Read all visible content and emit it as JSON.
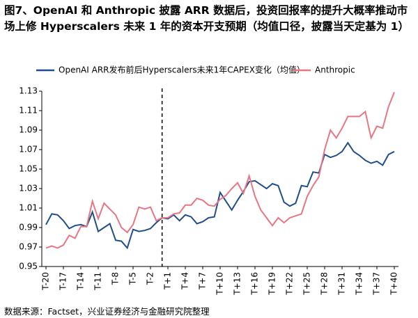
{
  "chart_data": {
    "type": "line",
    "title": "图7、OpenAI 和 Anthropic 披露 ARR 数据后，投资回报率的提升大概率推动市场上修 Hyperscalers 未来 1 年的资本开支预期（均值口径，披露当天定基为 1）",
    "source": "数据来源：Factset，兴业证券经济与金融研究院整理",
    "categories": [
      "T-20",
      null,
      null,
      "T-17",
      null,
      null,
      "T-14",
      null,
      null,
      "T-11",
      null,
      null,
      "T-8",
      null,
      null,
      "T-5",
      null,
      null,
      "T-2",
      null,
      null,
      "T+1",
      null,
      null,
      "T+4",
      null,
      null,
      "T+7",
      null,
      null,
      "T+10",
      null,
      null,
      "T+13",
      null,
      null,
      "T+16",
      null,
      null,
      "T+19",
      null,
      null,
      "T+22",
      null,
      null,
      "T+25",
      null,
      null,
      "T+28",
      null,
      null,
      "T+31",
      null,
      null,
      "T+34",
      null,
      null,
      "T+37",
      null,
      null,
      "T+40"
    ],
    "series": [
      {
        "name": "OpenAI ARR发布前后Hyperscalers未来1年CAPEX变化（均值）",
        "color": "#1f4e8c",
        "values": [
          0.993,
          1.004,
          1.003,
          0.997,
          0.989,
          0.992,
          0.993,
          0.991,
          1.006,
          0.986,
          0.99,
          0.994,
          0.977,
          0.976,
          0.969,
          0.988,
          0.986,
          0.987,
          0.989,
          0.995,
          1.0,
          0.999,
          1.003,
          0.997,
          1.003,
          1.001,
          0.994,
          0.996,
          1.0,
          1.001,
          1.026,
          1.017,
          1.008,
          1.018,
          1.027,
          1.037,
          1.038,
          1.034,
          1.03,
          1.035,
          1.033,
          1.016,
          1.012,
          1.015,
          1.033,
          1.032,
          1.047,
          1.046,
          1.065,
          1.062,
          1.064,
          1.068,
          1.077,
          1.068,
          1.064,
          1.059,
          1.056,
          1.058,
          1.054,
          1.065,
          1.068
        ]
      },
      {
        "name": "Anthropic",
        "color": "#e87582",
        "values": [
          0.969,
          0.971,
          0.969,
          0.972,
          0.982,
          0.979,
          0.991,
          0.991,
          1.017,
          0.999,
          1.015,
          1.009,
          1.003,
          0.99,
          0.985,
          0.993,
          1.011,
          1.009,
          1.011,
          0.997,
          1.0,
          1.0,
          1.004,
          1.005,
          1.013,
          1.013,
          1.02,
          1.018,
          1.013,
          1.012,
          1.019,
          1.023,
          1.03,
          1.036,
          1.025,
          1.043,
          1.022,
          1.008,
          1.0,
          0.992,
          1.0,
          0.995,
          1.0,
          1.002,
          1.004,
          1.022,
          1.033,
          1.042,
          1.07,
          1.09,
          1.082,
          1.092,
          1.104,
          1.104,
          1.104,
          1.109,
          1.082,
          1.094,
          1.092,
          1.114,
          1.129
        ]
      }
    ],
    "ylim": [
      0.95,
      1.13
    ],
    "yticks": [
      0.95,
      0.97,
      0.99,
      1.01,
      1.03,
      1.05,
      1.07,
      1.09,
      1.11,
      1.13
    ],
    "reference_line_x": 20,
    "legend": "top",
    "grid": false
  }
}
